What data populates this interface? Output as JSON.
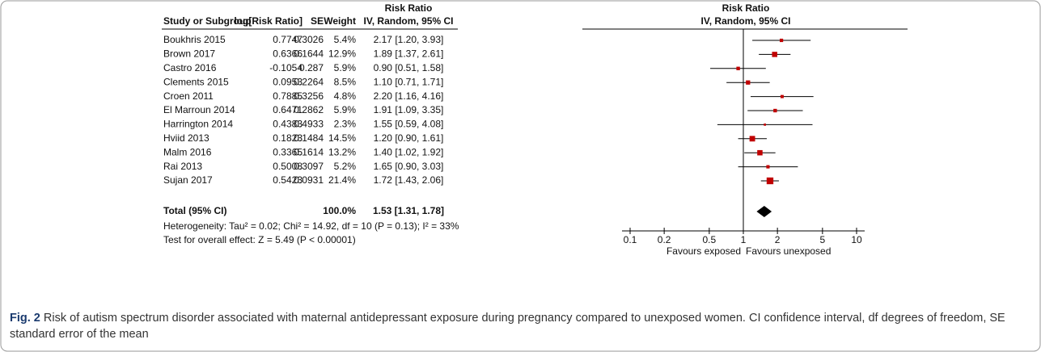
{
  "chart_data": {
    "type": "forest",
    "columns": [
      "Study or Subgroup",
      "log[Risk Ratio]",
      "SE",
      "Weight"
    ],
    "ci_header": [
      "Risk Ratio",
      "IV, Random, 95% CI"
    ],
    "plot_header": [
      "Risk Ratio",
      "IV, Random, 95% CI"
    ],
    "categories": [
      "Boukhris 2015",
      "Brown 2017",
      "Castro 2016",
      "Clements 2015",
      "Croen 2011",
      "El Marroun 2014",
      "Harrington 2014",
      "Hviid 2013",
      "Malm 2016",
      "Rai 2013",
      "Sujan 2017"
    ],
    "log_rr": [
      0.7747,
      0.6366,
      -0.1054,
      0.0953,
      0.7885,
      0.6471,
      0.4383,
      0.1823,
      0.3365,
      0.5008,
      0.5423
    ],
    "se": [
      0.3026,
      0.1644,
      0.287,
      0.2264,
      0.3256,
      0.2862,
      0.4933,
      0.1484,
      0.1614,
      0.3097,
      0.0931
    ],
    "weights": [
      5.4,
      12.9,
      5.9,
      8.5,
      4.8,
      5.9,
      2.3,
      14.5,
      13.2,
      5.2,
      21.4
    ],
    "weight_labels": [
      "5.4%",
      "12.9%",
      "5.9%",
      "8.5%",
      "4.8%",
      "5.9%",
      "2.3%",
      "14.5%",
      "13.2%",
      "5.2%",
      "21.4%"
    ],
    "values": [
      2.17,
      1.89,
      0.9,
      1.1,
      2.2,
      1.91,
      1.55,
      1.2,
      1.4,
      1.65,
      1.72
    ],
    "lower": [
      1.2,
      1.37,
      0.51,
      0.71,
      1.16,
      1.09,
      0.59,
      0.9,
      1.02,
      0.9,
      1.43
    ],
    "upper": [
      3.93,
      2.61,
      1.58,
      1.71,
      4.16,
      3.35,
      4.08,
      1.61,
      1.92,
      3.03,
      2.06
    ],
    "value_labels": [
      "2.17 [1.20, 3.93]",
      "1.89 [1.37, 2.61]",
      "0.90 [0.51, 1.58]",
      "1.10 [0.71, 1.71]",
      "2.20 [1.16, 4.16]",
      "1.91 [1.09, 3.35]",
      "1.55 [0.59, 4.08]",
      "1.20 [0.90, 1.61]",
      "1.40 [1.02, 1.92]",
      "1.65 [0.90, 3.03]",
      "1.72 [1.43, 2.06]"
    ],
    "total": {
      "label": "Total (95% CI)",
      "weight_label": "100.0%",
      "value": 1.53,
      "lower": 1.31,
      "upper": 1.78,
      "value_label": "1.53 [1.31, 1.78]"
    },
    "heterogeneity": "Heterogeneity: Tau² = 0.02; Chi² = 14.92, df = 10 (P = 0.13); I² = 33%",
    "overall_effect": "Test for overall effect: Z = 5.49 (P < 0.00001)",
    "xscale": "log",
    "xlim": [
      0.1,
      10
    ],
    "xticks": [
      0.1,
      0.2,
      0.5,
      1,
      2,
      5,
      10
    ],
    "null_value": 1,
    "favours_left": "Favours exposed",
    "favours_right": "Favours unexposed",
    "marker_color": "#c00000",
    "caption_label": "Fig. 2",
    "caption": "Risk of autism spectrum disorder associated with maternal antidepressant exposure during pregnancy compared to unexposed women. CI confidence interval, df degrees of freedom, SE standard error of the mean"
  }
}
